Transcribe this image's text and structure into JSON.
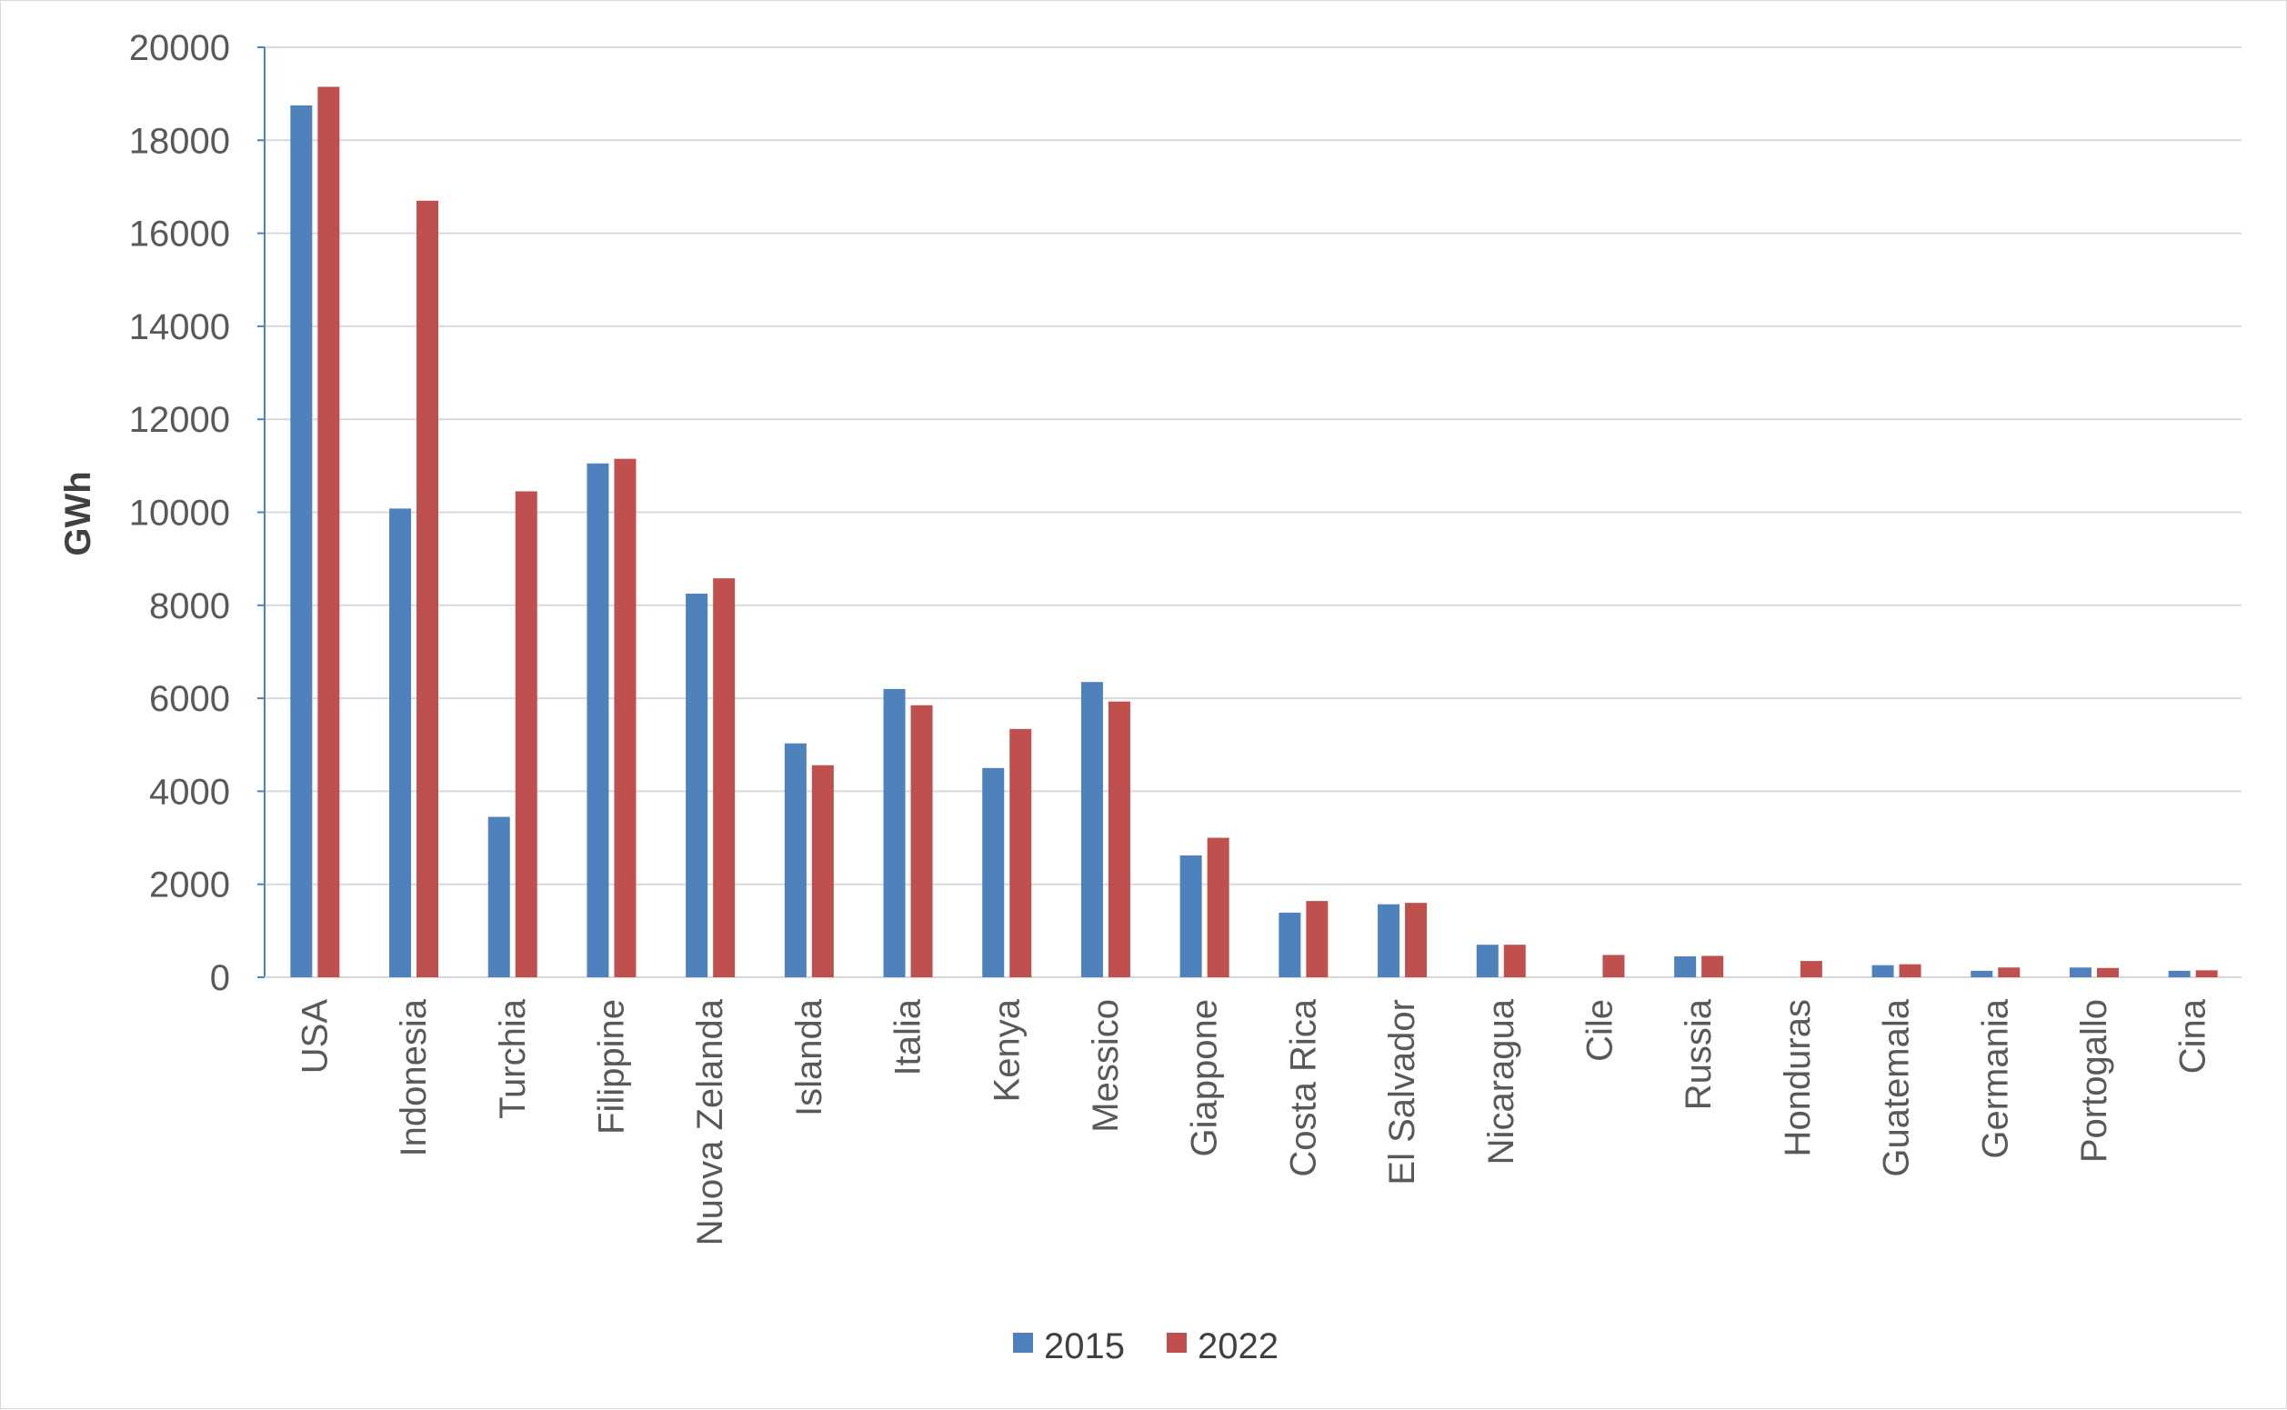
{
  "chart_data": {
    "type": "bar",
    "title": "",
    "xlabel": "",
    "ylabel": "GWh",
    "ylim": [
      0,
      20000
    ],
    "yticks": [
      0,
      2000,
      4000,
      6000,
      8000,
      10000,
      12000,
      14000,
      16000,
      18000,
      20000
    ],
    "grid": true,
    "legend_position": "bottom",
    "categories": [
      "USA",
      "Indonesia",
      "Turchia",
      "Filippine",
      "Nuova Zelanda",
      "Islanda",
      "Italia",
      "Kenya",
      "Messico",
      "Giappone",
      "Costa Rica",
      "El Salvador",
      "Nicaragua",
      "Cile",
      "Russia",
      "Honduras",
      "Guatemala",
      "Germania",
      "Portogallo",
      "Cina"
    ],
    "series": [
      {
        "name": "2015",
        "color": "#4f81bd",
        "values": [
          18750,
          10080,
          3450,
          11050,
          8250,
          5030,
          6200,
          4500,
          6350,
          2620,
          1390,
          1570,
          700,
          0,
          450,
          0,
          260,
          140,
          210,
          140
        ]
      },
      {
        "name": "2022",
        "color": "#c0504d",
        "values": [
          19150,
          16700,
          10450,
          11150,
          8580,
          4560,
          5850,
          5340,
          5930,
          3000,
          1640,
          1600,
          700,
          480,
          460,
          350,
          280,
          210,
          200,
          150
        ]
      }
    ]
  }
}
